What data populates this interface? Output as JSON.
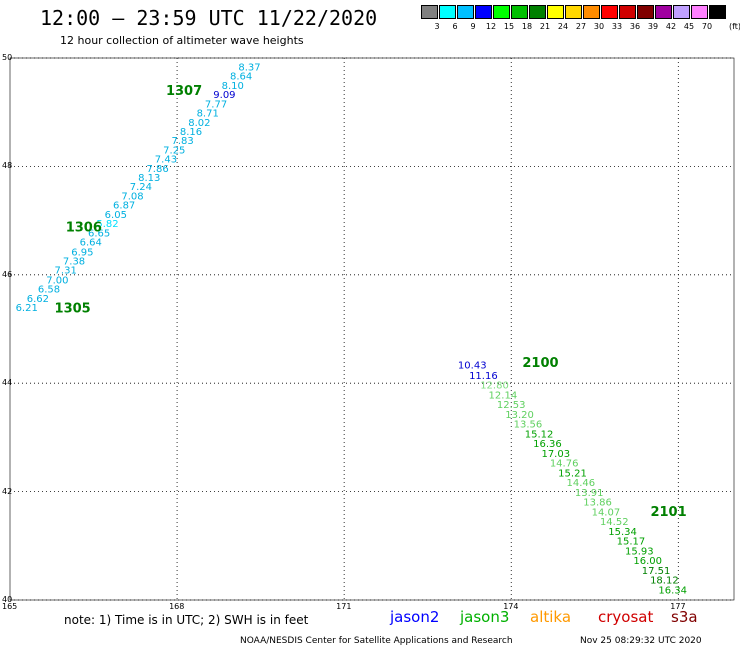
{
  "header": {
    "title": "12:00 – 23:59 UTC 11/22/2020",
    "subtitle": "12 hour collection of altimeter wave heights"
  },
  "legend": {
    "unit": "(ft)",
    "swatches": [
      {
        "label": "3",
        "color": "#808080"
      },
      {
        "label": "6",
        "color": "#00ffff"
      },
      {
        "label": "9",
        "color": "#00c0ff"
      },
      {
        "label": "12",
        "color": "#0000ff"
      },
      {
        "label": "15",
        "color": "#00ff00"
      },
      {
        "label": "18",
        "color": "#00c000"
      },
      {
        "label": "21",
        "color": "#008000"
      },
      {
        "label": "24",
        "color": "#ffff00"
      },
      {
        "label": "27",
        "color": "#ffd700"
      },
      {
        "label": "30",
        "color": "#ff8c00"
      },
      {
        "label": "33",
        "color": "#ff0000"
      },
      {
        "label": "36",
        "color": "#d00000"
      },
      {
        "label": "39",
        "color": "#800000"
      },
      {
        "label": "42",
        "color": "#a000a0"
      },
      {
        "label": "45",
        "color": "#c0a0ff"
      },
      {
        "label": "70",
        "color": "#ff80ff"
      },
      {
        "label": "",
        "color": "#000000"
      }
    ]
  },
  "axes": {
    "lat_labels": [
      "50",
      "48",
      "46",
      "44",
      "42",
      "40"
    ],
    "lon_labels": [
      "165",
      "168",
      "171",
      "174",
      "177"
    ]
  },
  "map_data": {
    "lon_range": [
      165,
      178
    ],
    "lat_range": [
      40,
      50
    ],
    "time_labels": [
      {
        "text": "1307",
        "lon": 167.8,
        "lat": 49.32
      },
      {
        "text": "1306",
        "lon": 166.0,
        "lat": 46.8
      },
      {
        "text": "1305",
        "lon": 165.8,
        "lat": 45.3
      },
      {
        "text": "2100",
        "lon": 174.2,
        "lat": 44.3
      },
      {
        "text": "2101",
        "lon": 176.5,
        "lat": 41.55
      }
    ],
    "tracks": [
      {
        "name": "track1",
        "points": [
          {
            "v": "6.21",
            "lon": 165.3,
            "lat": 45.33,
            "c": "#00b0e0"
          },
          {
            "v": "6.62",
            "lon": 165.5,
            "lat": 45.5,
            "c": "#00b0e0"
          },
          {
            "v": "6.58",
            "lon": 165.7,
            "lat": 45.67,
            "c": "#00b0e0"
          },
          {
            "v": "7.00",
            "lon": 165.85,
            "lat": 45.84,
            "c": "#00b0e0"
          },
          {
            "v": "7.31",
            "lon": 166.0,
            "lat": 46.02,
            "c": "#00b0e0"
          },
          {
            "v": "7.38",
            "lon": 166.15,
            "lat": 46.19,
            "c": "#00b0e0"
          },
          {
            "v": "6.95",
            "lon": 166.3,
            "lat": 46.36,
            "c": "#00b0e0"
          },
          {
            "v": "6.64",
            "lon": 166.45,
            "lat": 46.54,
            "c": "#00b0e0"
          },
          {
            "v": "6.65",
            "lon": 166.6,
            "lat": 46.71,
            "c": "#00b0e0"
          },
          {
            "v": "5.82",
            "lon": 166.75,
            "lat": 46.88,
            "c": "#00e0ff"
          },
          {
            "v": "6.05",
            "lon": 166.9,
            "lat": 47.05,
            "c": "#00b0e0"
          },
          {
            "v": "6.87",
            "lon": 167.05,
            "lat": 47.22,
            "c": "#00b0e0"
          },
          {
            "v": "7.08",
            "lon": 167.2,
            "lat": 47.39,
            "c": "#00b0e0"
          },
          {
            "v": "7.24",
            "lon": 167.35,
            "lat": 47.56,
            "c": "#00b0e0"
          },
          {
            "v": "8.13",
            "lon": 167.5,
            "lat": 47.73,
            "c": "#00b0e0"
          },
          {
            "v": "7.86",
            "lon": 167.65,
            "lat": 47.9,
            "c": "#00b0e0"
          },
          {
            "v": "7.43",
            "lon": 167.8,
            "lat": 48.07,
            "c": "#00b0e0"
          },
          {
            "v": "7.25",
            "lon": 167.95,
            "lat": 48.24,
            "c": "#00b0e0"
          },
          {
            "v": "7.83",
            "lon": 168.1,
            "lat": 48.41,
            "c": "#00b0e0"
          },
          {
            "v": "8.16",
            "lon": 168.25,
            "lat": 48.58,
            "c": "#00b0e0"
          },
          {
            "v": "8.02",
            "lon": 168.4,
            "lat": 48.75,
            "c": "#00b0e0"
          },
          {
            "v": "8.71",
            "lon": 168.55,
            "lat": 48.92,
            "c": "#00b0e0"
          },
          {
            "v": "7.77",
            "lon": 168.7,
            "lat": 49.09,
            "c": "#00b0e0"
          },
          {
            "v": "9.09",
            "lon": 168.85,
            "lat": 49.26,
            "c": "#0000d0"
          },
          {
            "v": "8.10",
            "lon": 169.0,
            "lat": 49.43,
            "c": "#00b0e0"
          },
          {
            "v": "8.64",
            "lon": 169.15,
            "lat": 49.6,
            "c": "#00b0e0"
          },
          {
            "v": "8.37",
            "lon": 169.3,
            "lat": 49.77,
            "c": "#00b0e0"
          }
        ]
      },
      {
        "name": "track2",
        "points": [
          {
            "v": "10.43",
            "lon": 173.3,
            "lat": 44.27,
            "c": "#0000d0"
          },
          {
            "v": "11.16",
            "lon": 173.5,
            "lat": 44.08,
            "c": "#0000d0"
          },
          {
            "v": "12.80",
            "lon": 173.7,
            "lat": 43.9,
            "c": "#80e080"
          },
          {
            "v": "12.14",
            "lon": 173.85,
            "lat": 43.72,
            "c": "#60d060"
          },
          {
            "v": "12.53",
            "lon": 174.0,
            "lat": 43.54,
            "c": "#60d060"
          },
          {
            "v": "13.20",
            "lon": 174.15,
            "lat": 43.36,
            "c": "#60d060"
          },
          {
            "v": "13.56",
            "lon": 174.3,
            "lat": 43.18,
            "c": "#60d060"
          },
          {
            "v": "15.12",
            "lon": 174.5,
            "lat": 43.0,
            "c": "#00a000"
          },
          {
            "v": "16.36",
            "lon": 174.65,
            "lat": 42.82,
            "c": "#00a000"
          },
          {
            "v": "17.03",
            "lon": 174.8,
            "lat": 42.64,
            "c": "#00a000"
          },
          {
            "v": "14.76",
            "lon": 174.95,
            "lat": 42.46,
            "c": "#60d060"
          },
          {
            "v": "15.21",
            "lon": 175.1,
            "lat": 42.28,
            "c": "#00a000"
          },
          {
            "v": "14.46",
            "lon": 175.25,
            "lat": 42.1,
            "c": "#60d060"
          },
          {
            "v": "13.91",
            "lon": 175.4,
            "lat": 41.92,
            "c": "#60d060"
          },
          {
            "v": "13.86",
            "lon": 175.55,
            "lat": 41.74,
            "c": "#60d060"
          },
          {
            "v": "14.07",
            "lon": 175.7,
            "lat": 41.56,
            "c": "#60d060"
          },
          {
            "v": "14.52",
            "lon": 175.85,
            "lat": 41.38,
            "c": "#60d060"
          },
          {
            "v": "15.34",
            "lon": 176.0,
            "lat": 41.2,
            "c": "#00a000"
          },
          {
            "v": "15.17",
            "lon": 176.15,
            "lat": 41.02,
            "c": "#00a000"
          },
          {
            "v": "15.93",
            "lon": 176.3,
            "lat": 40.84,
            "c": "#00a000"
          },
          {
            "v": "16.00",
            "lon": 176.45,
            "lat": 40.66,
            "c": "#00a000"
          },
          {
            "v": "17.51",
            "lon": 176.6,
            "lat": 40.48,
            "c": "#008000"
          },
          {
            "v": "18.12",
            "lon": 176.75,
            "lat": 40.3,
            "c": "#008000"
          },
          {
            "v": "16.34",
            "lon": 176.9,
            "lat": 40.12,
            "c": "#00a000"
          }
        ]
      }
    ]
  },
  "footer": {
    "note": "note:  1) Time is in UTC;  2) SWH is in feet",
    "satellites": [
      {
        "name": "jason2",
        "color": "#0000ff"
      },
      {
        "name": "jason3",
        "color": "#00b000"
      },
      {
        "name": "altika",
        "color": "#ff9900"
      },
      {
        "name": "cryosat",
        "color": "#d00000"
      },
      {
        "name": "s3a",
        "color": "#800000"
      }
    ],
    "credit": "NOAA/NESDIS Center for Satellite Applications and Research",
    "timestamp": "Nov 25 08:29:32 UTC 2020"
  }
}
